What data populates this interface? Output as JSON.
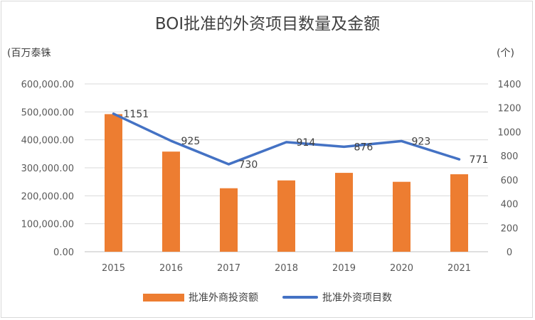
{
  "chart_data": {
    "type": "bar",
    "title": "BOI批准的外资项目数量及金额",
    "categories": [
      "2015",
      "2016",
      "2017",
      "2018",
      "2019",
      "2020",
      "2021"
    ],
    "series": [
      {
        "name": "批准外商投资额",
        "type": "bar",
        "axis": "left",
        "values": [
          492000,
          358000,
          227000,
          255000,
          282000,
          250000,
          277000
        ],
        "color": "#ed7d31"
      },
      {
        "name": "批准外资项目数",
        "type": "line",
        "axis": "right",
        "values": [
          1151,
          925,
          730,
          914,
          876,
          923,
          771
        ],
        "data_labels": [
          "1151",
          "925",
          "730",
          "914",
          "876",
          "923",
          "771"
        ],
        "color": "#4472c4"
      }
    ],
    "ylabel_left": "(百万泰铢",
    "ylabel_right": "(个)",
    "ylim_left": [
      0,
      600000
    ],
    "ylim_right": [
      0,
      1400
    ],
    "yticks_left": [
      "0.00",
      "100,000.00",
      "200,000.00",
      "300,000.00",
      "400,000.00",
      "500,000.00",
      "600,000.00"
    ],
    "yticks_right": [
      "0",
      "200",
      "400",
      "600",
      "800",
      "1000",
      "1200",
      "1400"
    ],
    "grid": true,
    "legend": "bottom"
  }
}
